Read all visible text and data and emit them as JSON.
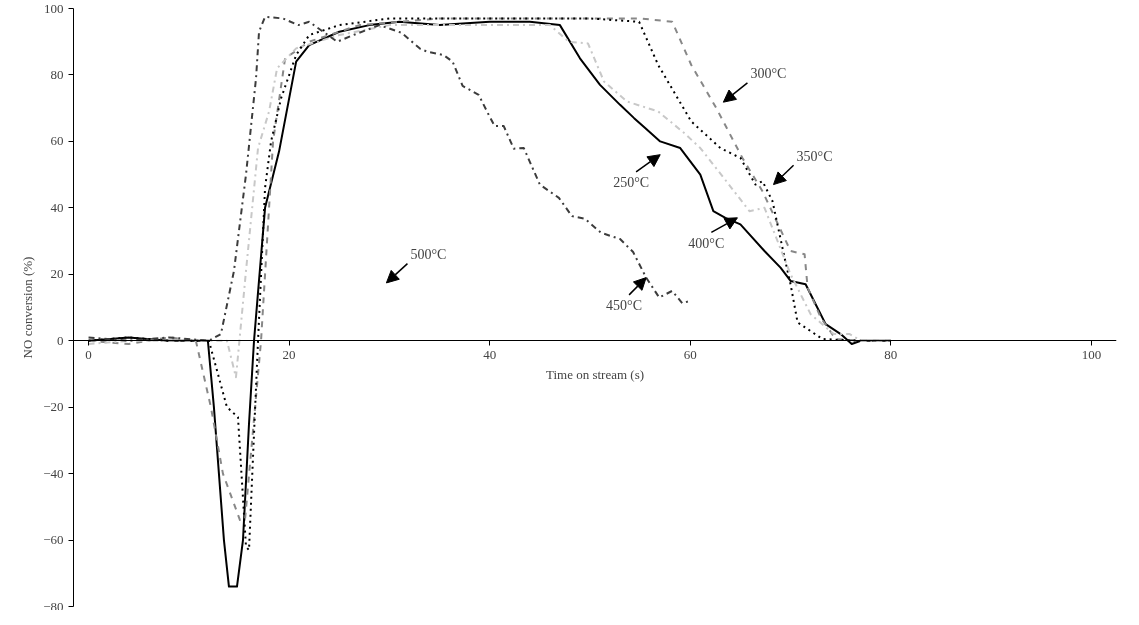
{
  "chart_data": {
    "type": "line",
    "xlabel": "Time on stream (s)",
    "ylabel": "NO conversion (%)",
    "xlim": [
      -1.5,
      102.5
    ],
    "ylim": [
      -80,
      100
    ],
    "xticks": [
      0,
      20,
      40,
      60,
      80,
      100
    ],
    "yticks": [
      -80,
      -60,
      -40,
      -20,
      0,
      20,
      40,
      60,
      80,
      100
    ],
    "series": [
      {
        "color": "#000000",
        "line_style": "solid",
        "x": [
          0,
          4,
          8,
          11.9,
          12.5,
          13.5,
          14,
          14.8,
          15.4,
          16.0,
          16.5,
          17.6,
          19.0,
          20.7,
          22,
          25,
          28,
          31,
          35,
          40,
          44,
          47,
          49,
          51,
          53,
          54.4,
          55.5,
          57,
          59,
          61,
          62.3,
          63.5,
          65,
          67.4,
          69,
          70,
          71.5,
          72.5,
          73.5,
          75,
          76.1,
          77,
          80
        ],
        "values": [
          0,
          1,
          0,
          0,
          -20,
          -60,
          -74,
          -74,
          -60,
          -25,
          0,
          40,
          57,
          84,
          89,
          93,
          95,
          96,
          95,
          96,
          96,
          95,
          85,
          77,
          71,
          67,
          64,
          60,
          58,
          50,
          39,
          37,
          35,
          27,
          22,
          18,
          17,
          11,
          5,
          2,
          -1,
          0,
          0
        ]
      },
      {
        "color": "#888888",
        "line_style": "dashed",
        "x": [
          0,
          4,
          8,
          10.7,
          12.2,
          13.4,
          15.1,
          15.6,
          17.2,
          18.4,
          19.6,
          22,
          27,
          35,
          45,
          55,
          58.2,
          60.1,
          62.6,
          65.2,
          67.2,
          70,
          71.4,
          71.7,
          73,
          74.5,
          77,
          80.3
        ],
        "values": [
          0,
          -1,
          1,
          0,
          -20,
          -40,
          -54,
          -54,
          0,
          60,
          85,
          90,
          95,
          97,
          97,
          97,
          96,
          83,
          70,
          55,
          45,
          27,
          26,
          16,
          7,
          0.5,
          0,
          0
        ]
      },
      {
        "color": "#000000",
        "line_style": "dotted",
        "x": [
          0,
          4,
          8,
          12.0,
          13.8,
          14.9,
          15.7,
          16.0,
          16.9,
          17.6,
          18.2,
          19.2,
          20.7,
          22,
          25,
          30,
          40,
          50,
          54.9,
          56.8,
          60.1,
          63,
          65,
          66.5,
          67.2,
          68.2,
          69.4,
          70,
          70.7,
          73.2,
          77
        ],
        "values": [
          0,
          1,
          0,
          0,
          -20,
          -23,
          -62,
          -63,
          0,
          46,
          60,
          73,
          86,
          92,
          95,
          97,
          97,
          97,
          96,
          83,
          66,
          58,
          55,
          47,
          48,
          42,
          25,
          17,
          5.5,
          0.5,
          0
        ]
      },
      {
        "color": "#c8c8c8",
        "line_style": "dashdot",
        "x": [
          0,
          4,
          8,
          13.8,
          14.7,
          15.7,
          16.9,
          18,
          18.8,
          20.7,
          25,
          30,
          40,
          46,
          47.9,
          49.8,
          51.4,
          53.7,
          56.8,
          59.4,
          61,
          63.6,
          65.9,
          67.4,
          70,
          72,
          74.3,
          75.9,
          77,
          80
        ],
        "values": [
          -1,
          0,
          0,
          0,
          -11,
          21,
          58,
          69,
          82,
          88,
          92,
          95,
          95,
          95,
          90,
          89.5,
          78,
          72,
          69,
          62.5,
          58,
          48,
          39,
          40,
          20,
          8,
          2,
          2,
          0,
          0
        ]
      },
      {
        "color": "#3c3c3c",
        "line_style": "dashdot",
        "x": [
          0,
          4,
          8,
          12,
          13.2,
          14.5,
          15.7,
          16.7,
          17,
          17.6,
          19.4,
          20.9,
          22,
          24.8,
          26.4,
          29,
          31.2,
          33.1,
          33.8,
          35.4,
          36.3,
          37.3,
          38.9,
          39.9,
          40.5,
          41.4,
          42.4,
          43.4,
          45,
          46.9,
          48.2,
          49.5,
          51.1,
          53,
          54.3,
          55.6,
          56.9,
          58.2,
          59.2,
          60
        ],
        "values": [
          1,
          0,
          1,
          0,
          2,
          21,
          50,
          79,
          93,
          97.5,
          97,
          95,
          96,
          90,
          92,
          95,
          92.7,
          87.8,
          87,
          86,
          84,
          76.7,
          74,
          68,
          64.6,
          64.6,
          57.8,
          58,
          47,
          43,
          37.5,
          36.7,
          32.5,
          30.6,
          26.7,
          19,
          13,
          15,
          11.3,
          12
        ]
      }
    ],
    "annotations": [
      "300°C",
      "350°C",
      "250°C",
      {
        "text": "400°C",
        "x": 64.7,
        "y": 37
      },
      {
        "text": "450°C",
        "x": 55.6,
        "y": 19
      },
      "500°C"
    ]
  }
}
